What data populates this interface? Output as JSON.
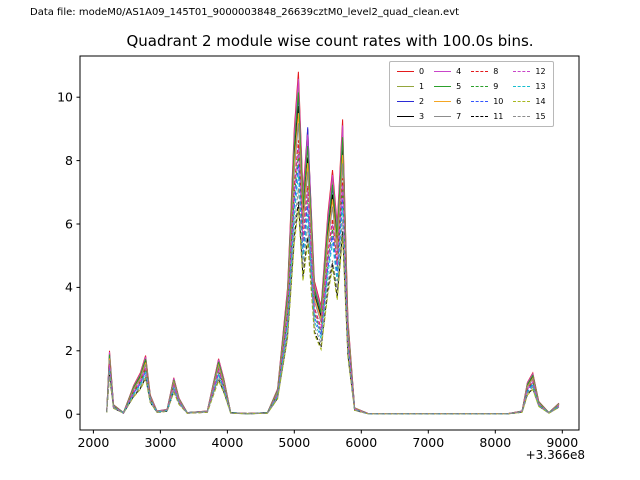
{
  "header": {
    "data_file": "Data file: modeM0/AS1A09_145T01_9000003848_26639cztM0_level2_quad_clean.evt"
  },
  "chart": {
    "title": "Quadrant 2 module wise count rates with 100.0s bins.",
    "x_offset_label": "+3.366e8",
    "x_ticks": [
      2000,
      3000,
      4000,
      5000,
      6000,
      7000,
      8000,
      9000
    ],
    "y_ticks": [
      0,
      2,
      4,
      6,
      8,
      10
    ],
    "xlim": [
      1800,
      9250
    ],
    "ylim": [
      -0.5,
      11.3
    ]
  },
  "chart_data": {
    "type": "line",
    "title": "Quadrant 2 module wise count rates with 100.0s bins.",
    "xlabel": "",
    "ylabel": "",
    "x_axis_offset": "+3.366e8",
    "xlim": [
      1800,
      9250
    ],
    "ylim": [
      -0.5,
      11.3
    ],
    "grid": false,
    "legend_position": "upper right",
    "legend_ncols": 4,
    "x": [
      2200,
      2240,
      2300,
      2450,
      2600,
      2700,
      2780,
      2850,
      2950,
      3100,
      3200,
      3280,
      3400,
      3700,
      3870,
      3950,
      4050,
      4300,
      4600,
      4750,
      4900,
      5000,
      5060,
      5130,
      5200,
      5300,
      5400,
      5500,
      5570,
      5640,
      5720,
      5800,
      5900,
      6100,
      6800,
      7500,
      8200,
      8400,
      8480,
      8560,
      8650,
      8800,
      8950
    ],
    "series": [
      {
        "name": "0",
        "color": "#e41a1c",
        "dash": false,
        "values": [
          0.1,
          2.0,
          0.3,
          0.05,
          0.9,
          1.3,
          1.85,
          0.6,
          0.1,
          0.15,
          1.15,
          0.5,
          0.05,
          0.1,
          1.75,
          1.1,
          0.05,
          0.02,
          0.05,
          0.8,
          4.0,
          9.0,
          10.8,
          7.0,
          9.0,
          4.2,
          3.4,
          6.3,
          7.7,
          6.0,
          9.3,
          3.0,
          0.2,
          0.02,
          0.02,
          0.02,
          0.02,
          0.1,
          1.0,
          1.3,
          0.4,
          0.05,
          0.35
        ]
      },
      {
        "name": "1",
        "color": "#94a63d",
        "dash": false,
        "values": [
          0.1,
          1.92,
          0.29,
          0.05,
          0.86,
          1.25,
          1.78,
          0.58,
          0.1,
          0.14,
          1.1,
          0.48,
          0.05,
          0.1,
          1.68,
          1.06,
          0.05,
          0.02,
          0.05,
          0.77,
          3.84,
          8.64,
          10.37,
          6.72,
          8.64,
          4.03,
          3.26,
          6.05,
          7.39,
          5.76,
          8.93,
          2.88,
          0.19,
          0.02,
          0.02,
          0.02,
          0.02,
          0.1,
          0.96,
          1.25,
          0.38,
          0.05,
          0.34
        ]
      },
      {
        "name": "2",
        "color": "#2b2bd5",
        "dash": false,
        "values": [
          0.09,
          1.86,
          0.28,
          0.05,
          0.84,
          1.21,
          1.72,
          0.56,
          0.09,
          0.14,
          1.07,
          0.47,
          0.05,
          0.09,
          1.63,
          1.02,
          0.05,
          0.02,
          0.05,
          0.74,
          3.72,
          8.37,
          10.04,
          6.51,
          9.05,
          3.91,
          3.16,
          5.86,
          7.16,
          5.58,
          8.65,
          2.79,
          0.19,
          0.02,
          0.02,
          0.02,
          0.02,
          0.09,
          0.93,
          1.21,
          0.37,
          0.05,
          0.33
        ]
      },
      {
        "name": "3",
        "color": "#000000",
        "dash": false,
        "values": [
          0.09,
          1.8,
          0.27,
          0.05,
          0.81,
          1.17,
          1.67,
          0.54,
          0.09,
          0.14,
          1.04,
          0.45,
          0.05,
          0.09,
          1.58,
          0.99,
          0.05,
          0.02,
          0.05,
          0.72,
          3.6,
          8.1,
          9.72,
          6.3,
          8.1,
          3.78,
          3.06,
          5.67,
          6.93,
          5.4,
          8.37,
          2.7,
          0.18,
          0.02,
          0.02,
          0.02,
          0.02,
          0.09,
          0.9,
          1.17,
          0.36,
          0.05,
          0.32
        ]
      },
      {
        "name": "4",
        "color": "#c945c9",
        "dash": false,
        "values": [
          0.1,
          1.96,
          0.29,
          0.05,
          0.88,
          1.27,
          1.81,
          0.59,
          0.1,
          0.15,
          1.13,
          0.49,
          0.05,
          0.1,
          1.72,
          1.08,
          0.05,
          0.02,
          0.05,
          0.78,
          3.92,
          8.82,
          10.58,
          6.86,
          8.82,
          4.12,
          3.33,
          6.17,
          7.55,
          5.88,
          9.11,
          2.94,
          0.2,
          0.02,
          0.02,
          0.02,
          0.02,
          0.1,
          0.98,
          1.27,
          0.39,
          0.05,
          0.34
        ]
      },
      {
        "name": "5",
        "color": "#2ca02c",
        "dash": false,
        "values": [
          0.09,
          1.88,
          0.28,
          0.05,
          0.85,
          1.22,
          1.74,
          0.56,
          0.09,
          0.14,
          1.08,
          0.47,
          0.05,
          0.09,
          1.65,
          1.03,
          0.05,
          0.02,
          0.05,
          0.75,
          3.76,
          8.46,
          10.15,
          6.58,
          8.46,
          3.95,
          3.2,
          5.92,
          7.24,
          5.64,
          8.74,
          2.82,
          0.19,
          0.02,
          0.02,
          0.02,
          0.02,
          0.09,
          0.94,
          1.22,
          0.38,
          0.05,
          0.33
        ]
      },
      {
        "name": "6",
        "color": "#f5a623",
        "dash": false,
        "values": [
          0.09,
          1.76,
          0.26,
          0.04,
          0.79,
          1.14,
          1.63,
          0.53,
          0.09,
          0.13,
          1.01,
          0.44,
          0.04,
          0.09,
          1.54,
          0.97,
          0.04,
          0.02,
          0.04,
          0.7,
          3.52,
          7.92,
          9.5,
          6.16,
          7.92,
          3.7,
          2.99,
          5.54,
          6.78,
          5.28,
          8.18,
          2.64,
          0.18,
          0.02,
          0.02,
          0.02,
          0.02,
          0.09,
          0.88,
          1.14,
          0.35,
          0.04,
          0.31
        ]
      },
      {
        "name": "7",
        "color": "#8c8c8c",
        "dash": false,
        "values": [
          0.09,
          1.7,
          0.26,
          0.04,
          0.77,
          1.11,
          1.57,
          0.51,
          0.09,
          0.13,
          0.98,
          0.43,
          0.04,
          0.09,
          1.49,
          0.94,
          0.04,
          0.02,
          0.04,
          0.68,
          3.4,
          7.65,
          9.18,
          5.95,
          7.65,
          3.57,
          2.89,
          5.36,
          6.55,
          5.1,
          7.91,
          2.55,
          0.17,
          0.02,
          0.02,
          0.02,
          0.02,
          0.09,
          0.85,
          1.11,
          0.34,
          0.04,
          0.3
        ]
      },
      {
        "name": "8",
        "color": "#e41a1c",
        "dash": true,
        "values": [
          0.08,
          1.6,
          0.24,
          0.04,
          0.72,
          1.04,
          1.48,
          0.48,
          0.08,
          0.12,
          0.92,
          0.4,
          0.04,
          0.08,
          1.4,
          0.88,
          0.04,
          0.02,
          0.04,
          0.64,
          3.2,
          7.2,
          8.64,
          5.6,
          7.2,
          3.36,
          2.72,
          5.04,
          6.16,
          4.8,
          7.44,
          2.4,
          0.16,
          0.02,
          0.02,
          0.02,
          0.02,
          0.08,
          0.8,
          1.04,
          0.32,
          0.04,
          0.28
        ]
      },
      {
        "name": "9",
        "color": "#2ca02c",
        "dash": true,
        "values": [
          0.08,
          1.52,
          0.23,
          0.04,
          0.68,
          0.99,
          1.41,
          0.46,
          0.08,
          0.11,
          0.87,
          0.38,
          0.04,
          0.08,
          1.33,
          0.84,
          0.04,
          0.02,
          0.04,
          0.61,
          3.04,
          6.84,
          8.21,
          5.32,
          6.84,
          3.19,
          2.58,
          4.79,
          5.85,
          4.56,
          7.07,
          2.28,
          0.15,
          0.02,
          0.02,
          0.02,
          0.02,
          0.08,
          0.76,
          0.99,
          0.3,
          0.04,
          0.27
        ]
      },
      {
        "name": "10",
        "color": "#3355ff",
        "dash": true,
        "values": [
          0.07,
          1.46,
          0.22,
          0.04,
          0.66,
          0.95,
          1.35,
          0.44,
          0.07,
          0.11,
          0.84,
          0.37,
          0.04,
          0.07,
          1.28,
          0.8,
          0.04,
          0.01,
          0.04,
          0.58,
          2.92,
          6.57,
          7.88,
          5.11,
          6.57,
          3.07,
          2.48,
          4.6,
          5.62,
          4.38,
          6.79,
          2.19,
          0.15,
          0.01,
          0.01,
          0.01,
          0.01,
          0.07,
          0.73,
          0.95,
          0.29,
          0.04,
          0.26
        ]
      },
      {
        "name": "11",
        "color": "#000000",
        "dash": true,
        "values": [
          0.06,
          1.24,
          0.19,
          0.03,
          0.56,
          0.81,
          1.15,
          0.37,
          0.06,
          0.09,
          0.71,
          0.31,
          0.03,
          0.06,
          1.09,
          0.68,
          0.03,
          0.01,
          0.03,
          0.5,
          2.48,
          5.58,
          6.7,
          4.34,
          5.58,
          2.6,
          2.11,
          3.91,
          4.77,
          3.72,
          5.77,
          1.86,
          0.12,
          0.01,
          0.01,
          0.01,
          0.01,
          0.06,
          0.62,
          0.81,
          0.25,
          0.03,
          0.22
        ]
      },
      {
        "name": "12",
        "color": "#c945c9",
        "dash": true,
        "values": [
          0.08,
          1.56,
          0.23,
          0.04,
          0.7,
          1.01,
          1.44,
          0.47,
          0.08,
          0.12,
          0.9,
          0.39,
          0.04,
          0.08,
          1.37,
          0.86,
          0.04,
          0.02,
          0.04,
          0.62,
          3.12,
          7.02,
          8.42,
          5.46,
          7.02,
          3.28,
          2.65,
          4.91,
          6.01,
          4.68,
          7.25,
          2.34,
          0.16,
          0.02,
          0.02,
          0.02,
          0.02,
          0.08,
          0.78,
          1.01,
          0.31,
          0.04,
          0.27
        ]
      },
      {
        "name": "13",
        "color": "#17becf",
        "dash": true,
        "values": [
          0.07,
          1.4,
          0.21,
          0.04,
          0.63,
          0.91,
          1.3,
          0.42,
          0.07,
          0.11,
          0.81,
          0.35,
          0.04,
          0.07,
          1.23,
          0.77,
          0.04,
          0.01,
          0.04,
          0.56,
          2.8,
          6.3,
          7.56,
          4.9,
          6.3,
          2.94,
          2.38,
          4.41,
          5.39,
          4.2,
          6.51,
          2.1,
          0.14,
          0.01,
          0.01,
          0.01,
          0.01,
          0.07,
          0.7,
          0.91,
          0.28,
          0.04,
          0.25
        ]
      },
      {
        "name": "14",
        "color": "#a8b820",
        "dash": true,
        "values": [
          0.06,
          1.2,
          0.18,
          0.03,
          0.54,
          0.78,
          1.11,
          0.36,
          0.06,
          0.09,
          0.69,
          0.3,
          0.03,
          0.06,
          1.05,
          0.66,
          0.03,
          0.01,
          0.03,
          0.48,
          2.4,
          5.4,
          6.48,
          4.2,
          5.4,
          2.52,
          2.04,
          3.78,
          4.62,
          3.6,
          5.58,
          1.8,
          0.12,
          0.01,
          0.01,
          0.01,
          0.01,
          0.06,
          0.6,
          0.78,
          0.24,
          0.03,
          0.21
        ]
      },
      {
        "name": "15",
        "color": "#8c8c8c",
        "dash": true,
        "values": [
          0.07,
          1.32,
          0.2,
          0.03,
          0.59,
          0.86,
          1.22,
          0.4,
          0.07,
          0.1,
          0.76,
          0.33,
          0.03,
          0.07,
          1.16,
          0.73,
          0.03,
          0.01,
          0.03,
          0.53,
          2.64,
          5.94,
          7.13,
          4.62,
          5.94,
          2.77,
          2.24,
          4.16,
          4.85,
          3.96,
          6.14,
          1.98,
          0.13,
          0.01,
          0.01,
          0.01,
          0.01,
          0.07,
          0.66,
          0.86,
          0.26,
          0.03,
          0.23
        ]
      }
    ]
  }
}
